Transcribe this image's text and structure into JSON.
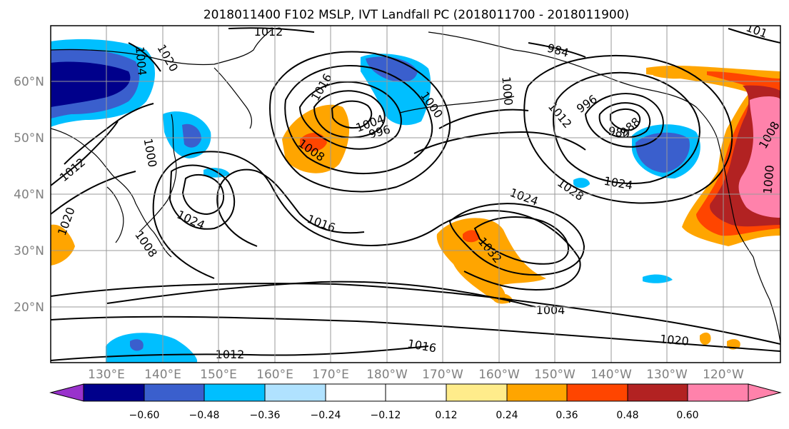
{
  "title": "2018011400 F102 MSLP, IVT Landfall PC (2018011700 - 2018011900)",
  "lon_labels": [
    "130°E",
    "140°E",
    "150°E",
    "160°E",
    "170°E",
    "180°W",
    "170°W",
    "160°W",
    "150°W",
    "140°W",
    "130°W",
    "120°W"
  ],
  "lat_labels": [
    "60°N",
    "50°N",
    "40°N",
    "30°N",
    "20°N"
  ],
  "colorbar": {
    "ticks": [
      "−0.60",
      "−0.48",
      "−0.36",
      "−0.24",
      "−0.12",
      "0.12",
      "0.24",
      "0.36",
      "0.48",
      "0.60"
    ],
    "colors": [
      "#9932cc",
      "#00008b",
      "#3a5fcd",
      "#00bfff",
      "#b0e2ff",
      "#ffffff",
      "#ffec8b",
      "#ffa500",
      "#ff4500",
      "#b22222",
      "#ff82ab"
    ]
  },
  "contour_labels": [
    {
      "text": "1012"
    },
    {
      "text": "1020"
    },
    {
      "text": "1004"
    },
    {
      "text": "1000"
    },
    {
      "text": "1012"
    },
    {
      "text": "1020"
    },
    {
      "text": "1024"
    },
    {
      "text": "1008"
    },
    {
      "text": "1016"
    },
    {
      "text": "1004"
    },
    {
      "text": "996"
    },
    {
      "text": "1000"
    },
    {
      "text": "1008"
    },
    {
      "text": "1016"
    },
    {
      "text": "1024"
    },
    {
      "text": "1032"
    },
    {
      "text": "1028"
    },
    {
      "text": "1024"
    },
    {
      "text": "1012"
    },
    {
      "text": "996"
    },
    {
      "text": "988"
    },
    {
      "text": "980"
    },
    {
      "text": "984"
    },
    {
      "text": "1000"
    },
    {
      "text": "1004"
    },
    {
      "text": "1020"
    },
    {
      "text": "1016"
    },
    {
      "text": "1012"
    },
    {
      "text": "1008"
    },
    {
      "text": "1000"
    },
    {
      "text": "101"
    },
    {
      "text": "1024"
    },
    {
      "text": "1016"
    }
  ]
}
